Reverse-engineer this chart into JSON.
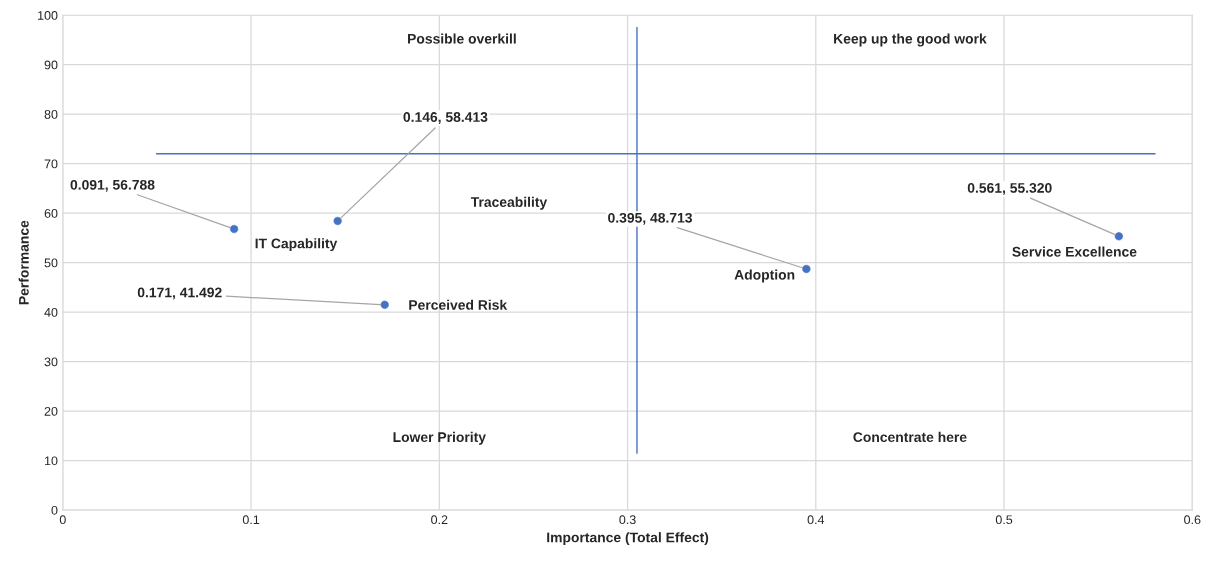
{
  "chart_data": {
    "type": "scatter",
    "xlabel": "Importance (Total Effect)",
    "ylabel": "Performance",
    "x": [
      0.091,
      0.146,
      0.171,
      0.395,
      0.561
    ],
    "values": [
      56.788,
      58.413,
      41.492,
      48.713,
      55.32
    ],
    "color": "#4472c4",
    "marker": "circle",
    "value_labels": [
      "0.091, 56.788",
      "0.146, 58.413",
      "0.171, 41.492",
      "0.395, 48.713",
      "0.561, 55.320"
    ],
    "xlim": [
      0,
      0.6
    ],
    "xticks": [
      0,
      0.1,
      0.2,
      0.3,
      0.4,
      0.5,
      0.6
    ],
    "ylim": [
      0,
      100
    ],
    "yticks": [
      0,
      10,
      20,
      30,
      40,
      50,
      60,
      70,
      80,
      90,
      100
    ],
    "grid": true,
    "legend": false,
    "ref_lines": [
      {
        "axis": "y",
        "value": 72,
        "color": "#4472c4"
      },
      {
        "axis": "x",
        "value": 0.305,
        "color": "#4472c4"
      }
    ],
    "annotations": [
      "Possible overkill",
      "Keep up the good work",
      "Lower Priority",
      "Concentrate here",
      "Traceability",
      {
        "text": "IT Capability",
        "x": 0.146,
        "y": 58.413
      },
      {
        "text": "Perceived Risk",
        "x": 0.171,
        "y": 41.492
      },
      {
        "text": "Adoption",
        "x": 0.395,
        "y": 48.713
      },
      {
        "text": "Service Excellence",
        "x": 0.561,
        "y": 55.32
      }
    ]
  }
}
